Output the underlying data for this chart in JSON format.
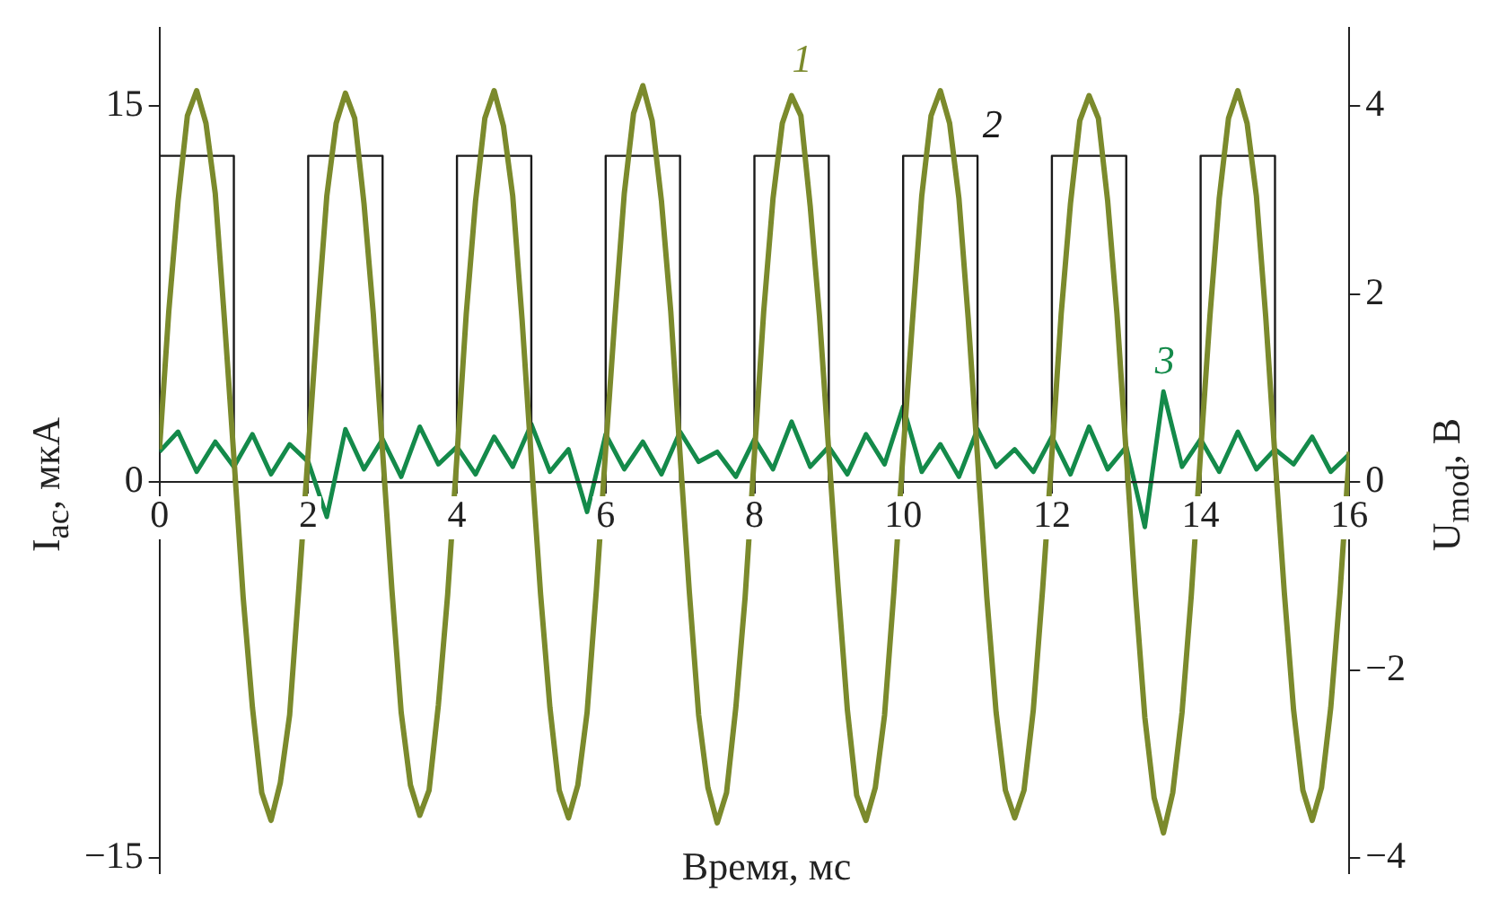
{
  "chart_data": {
    "type": "line",
    "xlabel": "Время, мс",
    "ylabel": "I$_{ac}$, мкА",
    "y2label": "U$_{mod}$, В",
    "xlim": [
      0,
      16
    ],
    "xticks": [
      0,
      2,
      4,
      6,
      8,
      10,
      12,
      14,
      16
    ],
    "ylim": [
      -15.6,
      18.1
    ],
    "yticks": [
      {
        "value": -15,
        "label": "−15"
      },
      0,
      15
    ],
    "y2lim": [
      -4.16,
      4.83
    ],
    "y2ticks": [
      {
        "value": -4,
        "label": "−4"
      },
      {
        "value": -2,
        "label": "−2"
      },
      0,
      2,
      4
    ],
    "grid": false,
    "legend": false,
    "marker": "none",
    "x": [
      0,
      0.125,
      0.25,
      0.375,
      0.5,
      0.625,
      0.75,
      0.875,
      1,
      1.125,
      1.25,
      1.375,
      1.5,
      1.625,
      1.75,
      1.875,
      2,
      2.125,
      2.25,
      2.375,
      2.5,
      2.625,
      2.75,
      2.875,
      3,
      3.125,
      3.25,
      3.375,
      3.5,
      3.625,
      3.75,
      3.875,
      4,
      4.125,
      4.25,
      4.375,
      4.5,
      4.625,
      4.75,
      4.875,
      5,
      5.125,
      5.25,
      5.375,
      5.5,
      5.625,
      5.75,
      5.875,
      6,
      6.125,
      6.25,
      6.375,
      6.5,
      6.625,
      6.75,
      6.875,
      7,
      7.125,
      7.25,
      7.375,
      7.5,
      7.625,
      7.75,
      7.875,
      8,
      8.125,
      8.25,
      8.375,
      8.5,
      8.625,
      8.75,
      8.875,
      9,
      9.125,
      9.25,
      9.375,
      9.5,
      9.625,
      9.75,
      9.875,
      10,
      10.125,
      10.25,
      10.375,
      10.5,
      10.625,
      10.75,
      10.875,
      11,
      11.125,
      11.25,
      11.375,
      11.5,
      11.625,
      11.75,
      11.875,
      12,
      12.125,
      12.25,
      12.375,
      12.5,
      12.625,
      12.75,
      12.875,
      13,
      13.125,
      13.25,
      13.375,
      13.5,
      13.625,
      13.75,
      13.875,
      14,
      14.125,
      14.25,
      14.375,
      14.5,
      14.625,
      14.75,
      14.875,
      15,
      15.125,
      15.25,
      15.375,
      15.5,
      15.625,
      15.75,
      15.875,
      16
    ],
    "series": [
      {
        "name": "1",
        "color": "#7b8a2c",
        "values": [
          1.3,
          6.8,
          11.2,
          14.6,
          15.6,
          14.3,
          11.5,
          6.4,
          1.0,
          -4.6,
          -9.0,
          -12.4,
          -13.5,
          -12.0,
          -9.3,
          -4.2,
          1.2,
          6.5,
          11.4,
          14.3,
          15.5,
          14.5,
          11.1,
          6.7,
          1.2,
          -4.3,
          -9.2,
          -12.1,
          -13.3,
          -12.3,
          -8.9,
          -4.5,
          1.0,
          6.7,
          11.2,
          14.5,
          15.6,
          14.2,
          11.4,
          6.5,
          0.9,
          -4.5,
          -9.0,
          -12.3,
          -13.4,
          -12.1,
          -9.2,
          -4.3,
          1.3,
          6.6,
          11.5,
          14.7,
          15.8,
          14.4,
          11.2,
          6.8,
          1.1,
          -4.4,
          -9.3,
          -12.2,
          -13.6,
          -12.4,
          -9.0,
          -4.6,
          1.1,
          6.8,
          11.3,
          14.3,
          15.4,
          14.6,
          11.0,
          6.6,
          1.2,
          -4.2,
          -9.1,
          -12.5,
          -13.5,
          -12.2,
          -9.3,
          -4.4,
          1.2,
          6.4,
          11.4,
          14.6,
          15.6,
          14.3,
          11.3,
          6.5,
          1.0,
          -4.6,
          -9.2,
          -12.3,
          -13.4,
          -12.3,
          -9.1,
          -4.3,
          1.1,
          6.7,
          11.1,
          14.4,
          15.4,
          14.5,
          11.2,
          6.7,
          1.1,
          -4.5,
          -9.4,
          -12.6,
          -14.0,
          -12.4,
          -9.2,
          -4.5,
          1.2,
          6.6,
          11.3,
          14.5,
          15.6,
          14.3,
          11.4,
          6.6,
          1.0,
          -4.4,
          -9.1,
          -12.3,
          -13.5,
          -12.2,
          -9.0,
          -4.4,
          1.2
        ]
      },
      {
        "name": "2",
        "type": "step",
        "axis": "y2",
        "color": "#1a1a1a",
        "x": [
          0,
          1,
          2,
          3,
          4,
          5,
          6,
          7,
          8,
          9,
          10,
          11,
          12,
          13,
          14,
          15,
          16
        ],
        "values": [
          3.47,
          0,
          3.47,
          0,
          3.47,
          0,
          3.47,
          0,
          3.47,
          0,
          3.47,
          0,
          3.47,
          0,
          3.47,
          0,
          0
        ]
      },
      {
        "name": "3",
        "color": "#148a4a",
        "x": [
          0,
          0.25,
          0.5,
          0.75,
          1,
          1.25,
          1.5,
          1.75,
          2,
          2.25,
          2.5,
          2.75,
          3,
          3.25,
          3.5,
          3.75,
          4,
          4.25,
          4.5,
          4.75,
          5,
          5.25,
          5.5,
          5.75,
          6,
          6.25,
          6.5,
          6.75,
          7,
          7.25,
          7.5,
          7.75,
          8,
          8.25,
          8.5,
          8.75,
          9,
          9.25,
          9.5,
          9.75,
          10,
          10.25,
          10.5,
          10.75,
          11,
          11.25,
          11.5,
          11.75,
          12,
          12.25,
          12.5,
          12.75,
          13,
          13.25,
          13.5,
          13.75,
          14,
          14.25,
          14.5,
          14.75,
          15,
          15.25,
          15.5,
          15.75,
          16
        ],
        "values": [
          1.2,
          2.0,
          0.4,
          1.6,
          0.6,
          1.9,
          0.3,
          1.5,
          0.8,
          -1.4,
          2.1,
          0.5,
          1.7,
          0.2,
          2.2,
          0.7,
          1.4,
          0.3,
          1.8,
          0.6,
          2.3,
          0.4,
          1.3,
          -1.2,
          1.9,
          0.5,
          1.6,
          0.3,
          2.0,
          0.8,
          1.2,
          0.2,
          1.7,
          0.5,
          2.4,
          0.6,
          1.4,
          0.3,
          1.9,
          0.7,
          3.0,
          0.4,
          1.5,
          0.2,
          2.1,
          0.6,
          1.3,
          0.4,
          1.8,
          0.3,
          2.2,
          0.5,
          1.4,
          -1.8,
          3.6,
          0.6,
          1.7,
          0.4,
          2.0,
          0.5,
          1.3,
          0.7,
          1.8,
          0.4,
          1.1
        ]
      }
    ]
  }
}
